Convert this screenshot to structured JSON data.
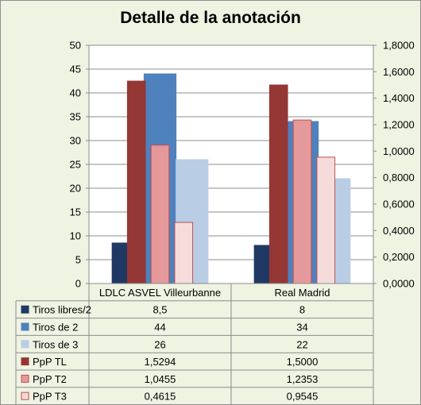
{
  "chart_data": {
    "type": "bar",
    "title": "Detalle de la anotación",
    "categories": [
      "LDLC ASVEL Villeurbanne",
      "Real Madrid"
    ],
    "y_left": {
      "ylim": [
        0,
        50
      ],
      "ticks": [
        "0",
        "5",
        "10",
        "15",
        "20",
        "25",
        "30",
        "35",
        "40",
        "45",
        "50"
      ]
    },
    "y_right": {
      "ylim": [
        0,
        1.8
      ],
      "ticks": [
        "0,0000",
        "0,2000",
        "0,4000",
        "0,6000",
        "0,8000",
        "1,0000",
        "1,2000",
        "1,4000",
        "1,6000",
        "1,8000"
      ]
    },
    "grid": true,
    "legend_placement": "data table below chart",
    "series": [
      {
        "name": "Tiros libres/2",
        "axis": "left",
        "values": [
          8.5,
          8
        ],
        "labels": [
          "8,5",
          "8"
        ],
        "color": "#1F3864",
        "border": "#1F3864"
      },
      {
        "name": "Tiros de 2",
        "axis": "left",
        "values": [
          44,
          34
        ],
        "labels": [
          "44",
          "34"
        ],
        "color": "#4F81BD",
        "border": "#4F81BD"
      },
      {
        "name": "Tiros de 3",
        "axis": "left",
        "values": [
          26,
          22
        ],
        "labels": [
          "26",
          "22"
        ],
        "color": "#B9CDE5",
        "border": "#B9CDE5"
      },
      {
        "name": "PpP TL",
        "axis": "right",
        "values": [
          1.5294,
          1.5
        ],
        "labels": [
          "1,5294",
          "1,5000"
        ],
        "color": "#953735",
        "border": "#953735"
      },
      {
        "name": "PpP T2",
        "axis": "right",
        "values": [
          1.0455,
          1.2353
        ],
        "labels": [
          "1,0455",
          "1,2353"
        ],
        "color": "#E6999A",
        "border": "#C0504D"
      },
      {
        "name": "PpP T3",
        "axis": "right",
        "values": [
          0.4615,
          0.9545
        ],
        "labels": [
          "0,4615",
          "0,9545"
        ],
        "color": "#F5DCDB",
        "border": "#C0504D"
      }
    ]
  }
}
